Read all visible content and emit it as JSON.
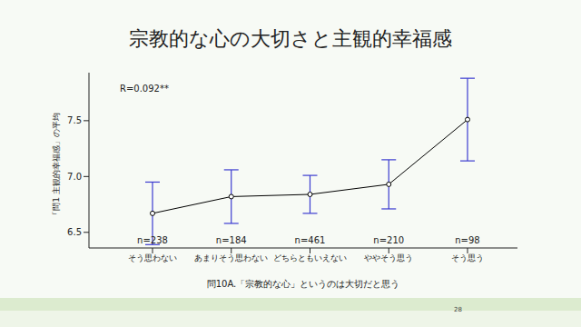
{
  "chart_data": {
    "type": "line",
    "title": "宗教的な心の大切さと主観的幸福感",
    "x_label": "問10A.「宗教的な心」というのは大切だと思う",
    "y_label": "「問1 主観的幸福感」の平均",
    "annotation": "R=0.092**",
    "categories": [
      "そう思わない",
      "あまりそう思わない",
      "どちらともいえない",
      "ややそう思う",
      "そう思う"
    ],
    "values": [
      6.67,
      6.82,
      6.84,
      6.93,
      7.51
    ],
    "errors": [
      0.28,
      0.24,
      0.17,
      0.22,
      0.37
    ],
    "n_labels": [
      "n=238",
      "n=184",
      "n=461",
      "n=210",
      "n=98"
    ],
    "color": "#000000",
    "error_color": "#3b3bd0",
    "marker": "open_circle",
    "ylim": [
      6.36,
      7.93
    ],
    "yticks": [
      6.5,
      {
        "value": 7,
        "label": "7.0"
      },
      7.5
    ],
    "grid": false
  },
  "slide": {
    "page_number": "28"
  }
}
